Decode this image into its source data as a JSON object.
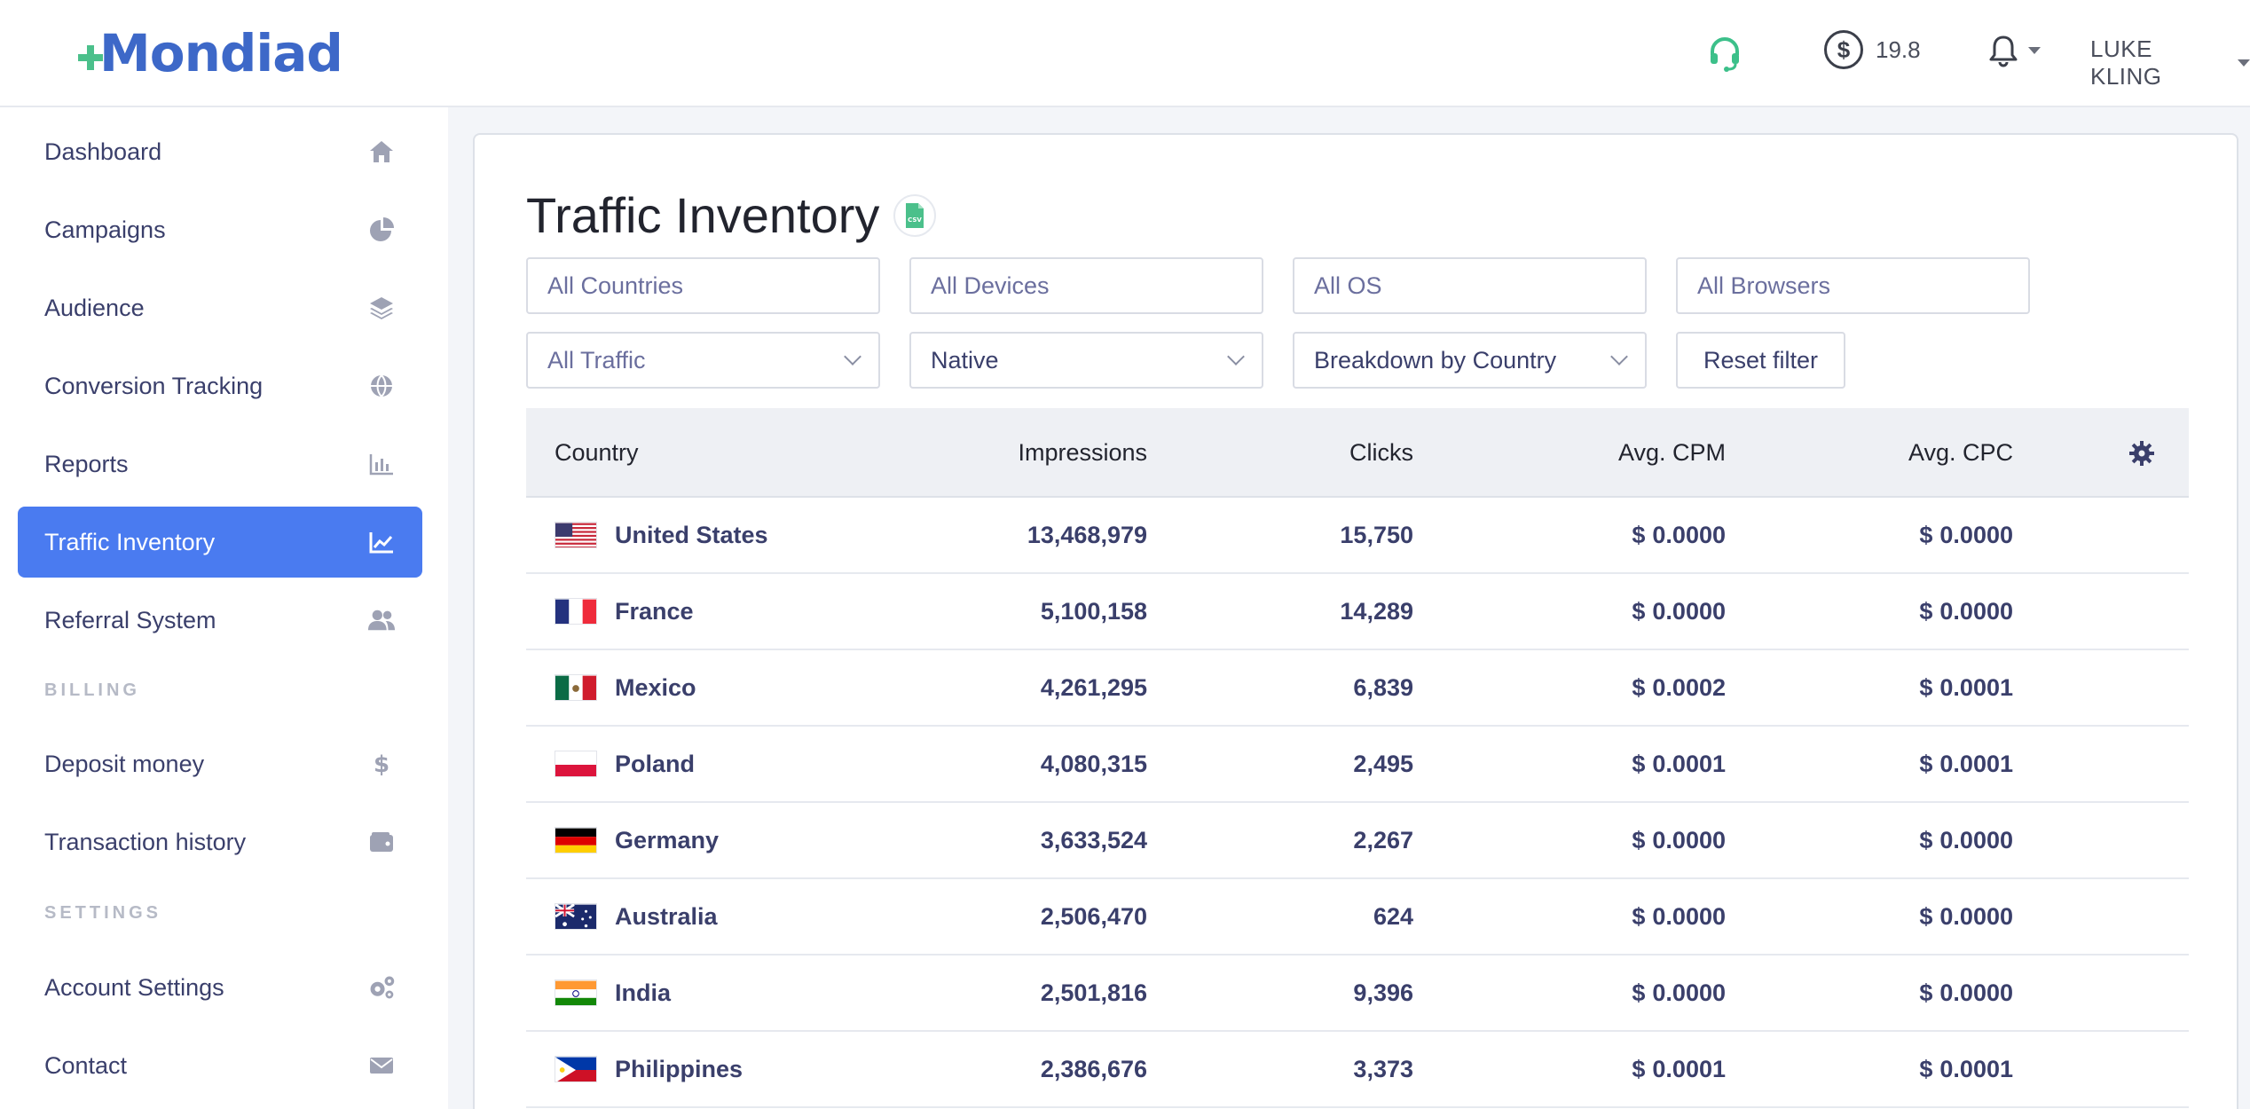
{
  "app": {
    "logo_text": "Mondiad"
  },
  "header": {
    "balance": "19.8",
    "balance_symbol": "$",
    "user_name": "LUKE KLING"
  },
  "sidebar": {
    "items": [
      {
        "label": "Dashboard",
        "icon": "home-icon"
      },
      {
        "label": "Campaigns",
        "icon": "pie-chart-icon"
      },
      {
        "label": "Audience",
        "icon": "layers-icon"
      },
      {
        "label": "Conversion Tracking",
        "icon": "globe-icon"
      },
      {
        "label": "Reports",
        "icon": "bar-chart-icon"
      },
      {
        "label": "Traffic Inventory",
        "icon": "line-chart-icon",
        "active": true
      },
      {
        "label": "Referral System",
        "icon": "users-icon"
      }
    ],
    "billing_heading": "BILLING",
    "billing_items": [
      {
        "label": "Deposit money",
        "icon": "dollar-icon"
      },
      {
        "label": "Transaction history",
        "icon": "wallet-icon"
      }
    ],
    "settings_heading": "SETTINGS",
    "settings_items": [
      {
        "label": "Account Settings",
        "icon": "cogs-icon"
      },
      {
        "label": "Contact",
        "icon": "envelope-icon"
      }
    ]
  },
  "main": {
    "title": "Traffic Inventory",
    "csv_label": "CSV",
    "filters": {
      "countries": "All Countries",
      "devices": "All Devices",
      "os": "All OS",
      "browsers": "All Browsers",
      "traffic": "All Traffic",
      "format": "Native",
      "breakdown": "Breakdown by Country",
      "reset": "Reset filter"
    },
    "table": {
      "columns": [
        "Country",
        "Impressions",
        "Clicks",
        "Avg. CPM",
        "Avg. CPC"
      ],
      "rows": [
        {
          "country": "United States",
          "flag": "us",
          "impressions": "13,468,979",
          "clicks": "15,750",
          "cpm": "0.0000",
          "cpc": "0.0000"
        },
        {
          "country": "France",
          "flag": "fr",
          "impressions": "5,100,158",
          "clicks": "14,289",
          "cpm": "0.0000",
          "cpc": "0.0000"
        },
        {
          "country": "Mexico",
          "flag": "mx",
          "impressions": "4,261,295",
          "clicks": "6,839",
          "cpm": "0.0002",
          "cpc": "0.0001"
        },
        {
          "country": "Poland",
          "flag": "pl",
          "impressions": "4,080,315",
          "clicks": "2,495",
          "cpm": "0.0001",
          "cpc": "0.0001"
        },
        {
          "country": "Germany",
          "flag": "de",
          "impressions": "3,633,524",
          "clicks": "2,267",
          "cpm": "0.0000",
          "cpc": "0.0000"
        },
        {
          "country": "Australia",
          "flag": "au",
          "impressions": "2,506,470",
          "clicks": "624",
          "cpm": "0.0000",
          "cpc": "0.0000"
        },
        {
          "country": "India",
          "flag": "in",
          "impressions": "2,501,816",
          "clicks": "9,396",
          "cpm": "0.0000",
          "cpc": "0.0000"
        },
        {
          "country": "Philippines",
          "flag": "ph",
          "impressions": "2,386,676",
          "clicks": "3,373",
          "cpm": "0.0001",
          "cpc": "0.0001"
        }
      ]
    }
  },
  "colors": {
    "accent": "#4a7bf0",
    "logo": "#3d68c8",
    "logo_plus": "#4bc08b",
    "nav_text": "#3a3f6b"
  }
}
